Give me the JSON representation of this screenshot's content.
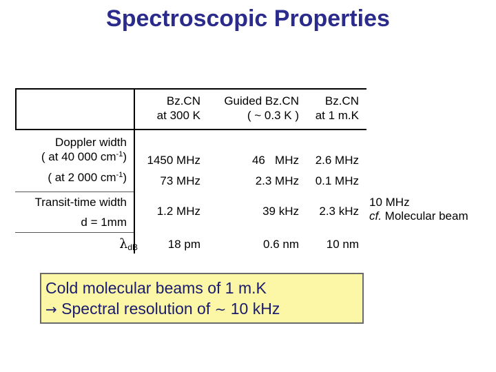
{
  "title": "Spectroscopic Properties",
  "headers": [
    {
      "line1": "Bz.CN",
      "line2": "at 300 K"
    },
    {
      "line1": "Guided Bz.CN",
      "line2": "( ~ 0.3 K )"
    },
    {
      "line1": "Bz.CN",
      "line2": "at 1 m.K"
    }
  ],
  "rows": {
    "doppler": {
      "label": "Doppler width",
      "sub1_prefix": "( at 40 000 cm",
      "sub1_sup": "-1",
      "sub1_suffix": ")",
      "sub2_prefix": "( at 2 000 cm",
      "sub2_sup": "-1",
      "sub2_suffix": ")",
      "values_40000": [
        "1450 MHz",
        "46   MHz",
        "2.6 MHz"
      ],
      "values_2000": [
        "73 MHz",
        "2.3 MHz",
        "0.1 MHz"
      ]
    },
    "transit": {
      "label": "Transit-time width",
      "sublabel": "d = 1mm",
      "values": [
        "1.2 MHz",
        "39 kHz",
        "2.3 kHz"
      ]
    },
    "debroglie": {
      "symbol": "λ",
      "subscript": "dB",
      "values": [
        "18 pm",
        "0.6 nm",
        "10 nm"
      ]
    }
  },
  "side_note": {
    "line1": "10 MHz",
    "line2_italic": "cf.",
    "line2_rest": " Molecular beam"
  },
  "summary": {
    "line1": "Cold molecular beams of 1 m.K",
    "arrow": "→",
    "line2_a": " Spectral resolution of ",
    "tilde": "~",
    "line2_b": " 10 kHz"
  }
}
